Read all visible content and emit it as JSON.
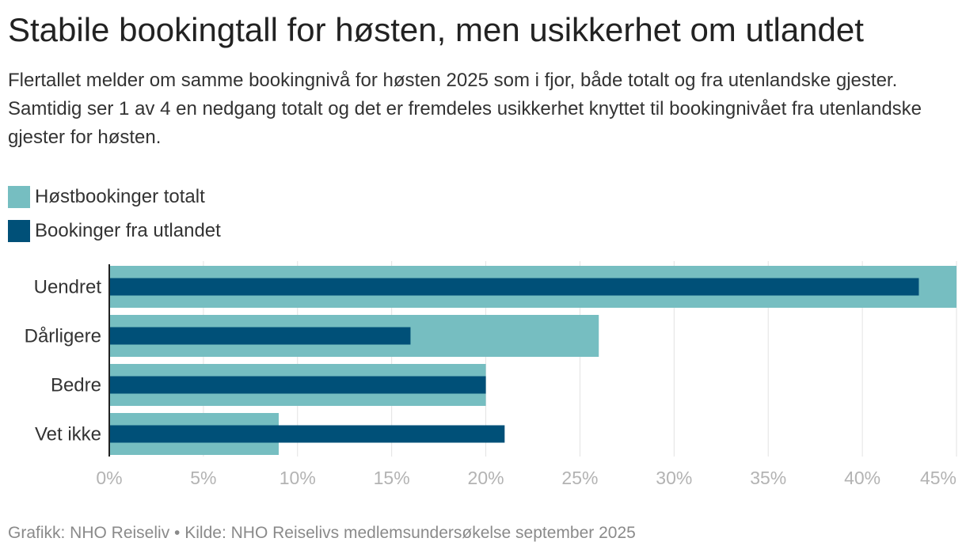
{
  "title": "Stabile bookingtall for høsten, men usikkerhet om utlandet",
  "subtitle": "Flertallet melder om samme bookingnivå for høsten 2025 som i fjor, både totalt og fra utenlandske gjester. Samtidig ser 1 av 4 en nedgang totalt og det er fremdeles usikkerhet knyttet til bookingnivået fra utenlandske gjester for høsten.",
  "colors": {
    "total": "#76bec1",
    "foreign": "#005078",
    "grid": "#e2e2e2",
    "axis": "#222222",
    "tick": "#b3b3b3"
  },
  "legend": [
    {
      "label": "Høstbookinger totalt",
      "color": "#76bec1"
    },
    {
      "label": "Bookinger fra utlandet",
      "color": "#005078"
    }
  ],
  "footer": {
    "graphic": "Grafikk: NHO Reiseliv",
    "separator": "•",
    "source": "Kilde: NHO Reiselivs medlemsundersøkelse september 2025"
  },
  "chart_data": {
    "type": "bar",
    "orientation": "horizontal",
    "categories": [
      "Uendret",
      "Dårligere",
      "Bedre",
      "Vet ikke"
    ],
    "series": [
      {
        "name": "Høstbookinger totalt",
        "values": [
          45,
          26,
          20,
          9
        ]
      },
      {
        "name": "Bookinger fra utlandet",
        "values": [
          43,
          16,
          20,
          21
        ]
      }
    ],
    "xlim": [
      0,
      45
    ],
    "xticks": [
      0,
      5,
      10,
      15,
      20,
      25,
      30,
      35,
      40,
      45
    ],
    "xtick_labels": [
      "0%",
      "5%",
      "10%",
      "15%",
      "20%",
      "25%",
      "30%",
      "35%",
      "40%",
      "45%"
    ],
    "grid": true,
    "legend_position": "top-left"
  }
}
